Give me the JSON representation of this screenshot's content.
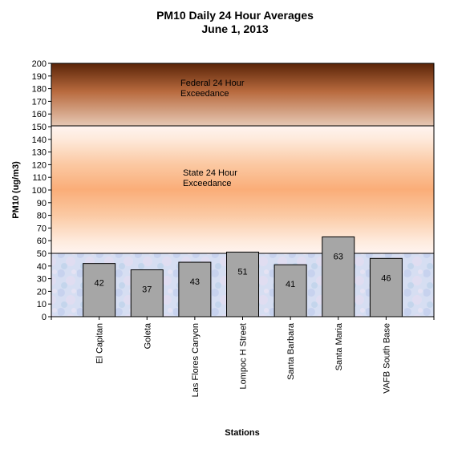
{
  "chart_data": {
    "type": "bar",
    "title": "PM10 Daily 24 Hour Averages",
    "subtitle": "June 1, 2013",
    "xlabel": "Stations",
    "ylabel": "PM10 (ug/m3)",
    "ylim": [
      0,
      200
    ],
    "yticks": [
      0,
      10,
      20,
      30,
      40,
      50,
      60,
      70,
      80,
      90,
      100,
      110,
      120,
      130,
      140,
      150,
      160,
      170,
      180,
      190,
      200
    ],
    "categories": [
      "El Capitan",
      "Goleta",
      "Las Flores Canyon",
      "Lompoc H Street",
      "Santa Barbara",
      "Santa Maria",
      "VAFB South Base"
    ],
    "values": [
      42,
      37,
      43,
      51,
      41,
      63,
      46
    ],
    "data_labels": [
      "42",
      "37",
      "43",
      "51",
      "41",
      "63",
      "46"
    ],
    "zones": [
      {
        "label_line1": "Federal 24 Hour",
        "label_line2": "Exceedance",
        "from": 150,
        "to": 200
      },
      {
        "label_line1": "State 24 Hour",
        "label_line2": "Exceedance",
        "from": 50,
        "to": 150
      }
    ],
    "grid": false,
    "legend": "none",
    "colors": {
      "bar": "#a6a6a6",
      "federal_top": "#5a2408",
      "federal_mid": "#c4744a",
      "federal_bottom": "#e2bfa6",
      "state_light": "#fde7d4",
      "state_dark": "#f9b482",
      "background_low": "#cdd8f0"
    }
  }
}
